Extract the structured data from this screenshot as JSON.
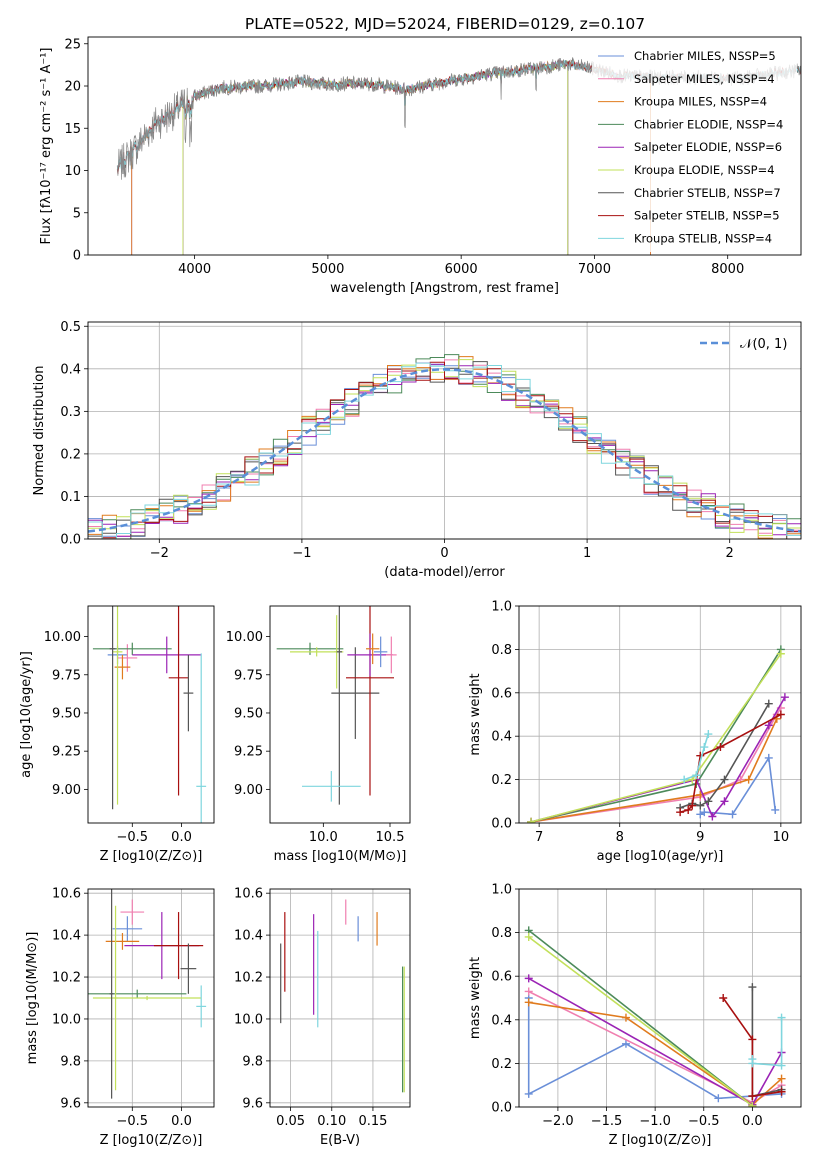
{
  "title": "PLATE=0522, MJD=52024, FIBERID=0129, z=0.107",
  "colors": {
    "Chabrier MILES": "#6a8fd8",
    "Salpeter MILES": "#f07fb0",
    "Kroupa MILES": "#e07b1e",
    "Chabrier ELODIE": "#4c8a5a",
    "Salpeter ELODIE": "#9b24b5",
    "Kroupa ELODIE": "#c2e05a",
    "Chabrier STELIB": "#555555",
    "Salpeter STELIB": "#a81010",
    "Kroupa STELIB": "#7fd6de",
    "data": "#888888",
    "normal": "#5a8fd8"
  },
  "chart_data": [
    {
      "id": "spectrum",
      "type": "line",
      "title": "PLATE=0522, MJD=52024, FIBERID=0129, z=0.107",
      "xlabel": "wavelength [Angstrom, rest frame]",
      "ylabel": "Flux [fλ10⁻¹⁷ erg cm⁻² s⁻¹ A⁻¹]",
      "xlim": [
        3200,
        8550
      ],
      "ylim": [
        0,
        25.8
      ],
      "xticks": [
        4000,
        5000,
        6000,
        7000,
        8000
      ],
      "yticks": [
        0,
        5,
        10,
        15,
        20,
        25
      ],
      "grid": false,
      "legend_position": "top-right",
      "legend": [
        "Chabrier MILES, NSSP=5",
        "Salpeter MILES, NSSP=4",
        "Kroupa MILES, NSSP=4",
        "Chabrier ELODIE, NSSP=4",
        "Salpeter ELODIE, NSSP=6",
        "Kroupa ELODIE, NSSP=4",
        "Chabrier STELIB, NSSP=7",
        "Salpeter STELIB, NSSP=5",
        "Kroupa STELIB, NSSP=4"
      ],
      "data_range": [
        3420,
        8550
      ],
      "continuum": [
        [
          3420,
          10.2
        ],
        [
          3550,
          12.5
        ],
        [
          3700,
          15.5
        ],
        [
          3850,
          17
        ],
        [
          4000,
          18.8
        ],
        [
          4200,
          19.8
        ],
        [
          4500,
          20
        ],
        [
          4800,
          20.5
        ],
        [
          5000,
          20.2
        ],
        [
          5300,
          20.3
        ],
        [
          5600,
          19.6
        ],
        [
          5900,
          20.6
        ],
        [
          6200,
          21.4
        ],
        [
          6500,
          22
        ],
        [
          6800,
          22.6
        ],
        [
          7000,
          22
        ],
        [
          7200,
          21.2
        ],
        [
          7500,
          21
        ],
        [
          7800,
          21
        ],
        [
          8100,
          20.9
        ],
        [
          8550,
          21.9
        ]
      ],
      "model_cutoffs": {
        "MILES": [
          3525,
          7420
        ],
        "ELODIE": [
          3910,
          6800
        ],
        "STELIB": [
          3420,
          8550
        ]
      }
    },
    {
      "id": "residuals",
      "type": "histogram",
      "xlabel": "(data-model)/error",
      "ylabel": "Normed distribution",
      "xlim": [
        -2.5,
        2.5
      ],
      "ylim": [
        0,
        0.51
      ],
      "xticks": [
        -2,
        -1,
        0,
        1,
        2
      ],
      "yticks": [
        0.0,
        0.1,
        0.2,
        0.3,
        0.4,
        0.5
      ],
      "grid": true,
      "legend_position": "top-right",
      "legend": [
        "𝒩(0, 1)"
      ],
      "bin_width": 0.1
    },
    {
      "id": "age-vs-Z",
      "type": "errorbar",
      "xlabel": "Z [log10(Z/Z⊙)]",
      "ylabel": "age  [log10(age/yr)]",
      "xlim": [
        -0.95,
        0.33
      ],
      "ylim": [
        8.78,
        10.2
      ],
      "xticks": [
        -0.5,
        0.0
      ],
      "yticks": [
        9.0,
        9.25,
        9.5,
        9.75,
        10.0
      ],
      "points": [
        {
          "model": "Chabrier MILES",
          "x": -0.65,
          "xerr": 0.1,
          "y": 9.88,
          "yerr": 0.06
        },
        {
          "model": "Salpeter MILES",
          "x": -0.55,
          "xerr": 0.1,
          "y": 9.86,
          "yerr": 0.09
        },
        {
          "model": "Kroupa MILES",
          "x": -0.6,
          "xerr": 0.08,
          "y": 9.8,
          "yerr": 0.08
        },
        {
          "model": "Chabrier ELODIE",
          "x": -0.5,
          "xerr": 0.4,
          "y": 9.92,
          "yerr": 0.04
        },
        {
          "model": "Salpeter ELODIE",
          "x": -0.15,
          "xerr": 0.35,
          "y": 9.88,
          "yerr": 0.12
        },
        {
          "model": "Kroupa ELODIE",
          "x": -0.65,
          "xerr": 0.05,
          "y": 9.9,
          "yerr": 1.0
        },
        {
          "model": "Chabrier STELIB",
          "x": -0.7,
          "xerr": 0.03,
          "y": 9.92,
          "yerr": 1.05
        },
        {
          "model": "Salpeter STELIB",
          "x": -0.03,
          "xerr": 0.1,
          "y": 9.73,
          "yerr": 0.77
        },
        {
          "model": "Chabrier STELIB",
          "x": 0.07,
          "xerr": 0.05,
          "y": 9.63,
          "yerr": 0.25
        },
        {
          "model": "Kroupa STELIB",
          "x": 0.2,
          "xerr": 0.05,
          "y": 9.02,
          "yerr": 0.87
        }
      ]
    },
    {
      "id": "age-vs-mass",
      "type": "errorbar",
      "xlabel": "mass [log10(M/M⊙)]",
      "ylabel": "",
      "xlim": [
        9.6,
        10.65
      ],
      "ylim": [
        8.78,
        10.2
      ],
      "xticks": [
        10.0,
        10.5
      ],
      "yticks": [
        9.0,
        9.25,
        9.5,
        9.75,
        10.0
      ],
      "points": [
        {
          "model": "Chabrier ELODIE",
          "x": 9.9,
          "xerr": 0.25,
          "y": 9.92,
          "yerr": 0.04
        },
        {
          "model": "Kroupa ELODIE",
          "x": 9.95,
          "xerr": 0.2,
          "y": 9.9,
          "yerr": 0.03
        },
        {
          "model": "Kroupa ELODIE",
          "x": 10.1,
          "xerr": 0.02,
          "y": 9.9,
          "yerr": 0.24
        },
        {
          "model": "Chabrier STELIB",
          "x": 10.12,
          "xerr": 0.02,
          "y": 9.9,
          "yerr": 1.0
        },
        {
          "model": "Chabrier STELIB",
          "x": 10.24,
          "xerr": 0.18,
          "y": 9.63,
          "yerr": 0.3
        },
        {
          "model": "Kroupa STELIB",
          "x": 10.06,
          "xerr": 0.22,
          "y": 9.02,
          "yerr": 0.1
        },
        {
          "model": "Salpeter STELIB",
          "x": 10.35,
          "xerr": 0.18,
          "y": 9.73,
          "yerr": 0.77
        },
        {
          "model": "Salpeter ELODIE",
          "x": 10.35,
          "xerr": 0.17,
          "y": 9.88,
          "yerr": 0.14
        },
        {
          "model": "Kroupa MILES",
          "x": 10.37,
          "xerr": 0.05,
          "y": 9.92,
          "yerr": 0.1
        },
        {
          "model": "Chabrier MILES",
          "x": 10.43,
          "xerr": 0.05,
          "y": 9.9,
          "yerr": 0.1
        },
        {
          "model": "Salpeter MILES",
          "x": 10.51,
          "xerr": 0.04,
          "y": 9.88,
          "yerr": 0.12
        }
      ]
    },
    {
      "id": "weight-vs-age",
      "type": "line",
      "xlabel": "age  [log10(age/yr)]",
      "ylabel": "mass weight",
      "xlim": [
        6.75,
        10.25
      ],
      "ylim": [
        0,
        1.0
      ],
      "xticks": [
        7,
        8,
        9,
        10
      ],
      "yticks": [
        0.0,
        0.2,
        0.4,
        0.6,
        0.8,
        1.0
      ],
      "grid": true,
      "series": [
        {
          "model": "Chabrier MILES",
          "x": [
            9.0,
            9.05,
            9.4,
            9.85,
            9.93
          ],
          "y": [
            0.04,
            0.05,
            0.04,
            0.3,
            0.06
          ]
        },
        {
          "model": "Salpeter MILES",
          "x": [
            6.9,
            9.0,
            9.5,
            9.95,
            10.0
          ],
          "y": [
            0.005,
            0.12,
            0.2,
            0.5,
            0.53
          ]
        },
        {
          "model": "Kroupa MILES",
          "x": [
            6.9,
            9.0,
            9.6,
            9.95
          ],
          "y": [
            0.005,
            0.13,
            0.2,
            0.48
          ]
        },
        {
          "model": "Chabrier ELODIE",
          "x": [
            6.9,
            8.95,
            10.0
          ],
          "y": [
            0.005,
            0.18,
            0.8
          ]
        },
        {
          "model": "Salpeter ELODIE",
          "x": [
            6.9,
            8.95,
            9.15,
            9.3,
            9.85,
            10.05
          ],
          "y": [
            0.005,
            0.2,
            0.03,
            0.1,
            0.45,
            0.58
          ]
        },
        {
          "model": "Kroupa ELODIE",
          "x": [
            6.9,
            8.9,
            10.0
          ],
          "y": [
            0.005,
            0.2,
            0.78
          ]
        },
        {
          "model": "Chabrier STELIB",
          "x": [
            8.75,
            8.9,
            9.0,
            9.1,
            9.3,
            9.85
          ],
          "y": [
            0.07,
            0.09,
            0.08,
            0.1,
            0.2,
            0.55
          ]
        },
        {
          "model": "Salpeter STELIB",
          "x": [
            8.75,
            8.85,
            8.9,
            9.0,
            9.25,
            10.0
          ],
          "y": [
            0.05,
            0.06,
            0.08,
            0.31,
            0.35,
            0.5
          ]
        },
        {
          "model": "Kroupa STELIB",
          "x": [
            8.8,
            8.95,
            9.05,
            9.1
          ],
          "y": [
            0.2,
            0.22,
            0.35,
            0.41
          ]
        }
      ]
    },
    {
      "id": "mass-vs-Z",
      "type": "errorbar",
      "xlabel": "Z [log10(Z/Z⊙)]",
      "ylabel": "mass [log10(M/M⊙)]",
      "xlim": [
        -0.95,
        0.33
      ],
      "ylim": [
        9.58,
        10.62
      ],
      "xticks": [
        -0.5,
        0.0
      ],
      "yticks": [
        9.6,
        9.8,
        10.0,
        10.2,
        10.4,
        10.6
      ],
      "points": [
        {
          "model": "Chabrier MILES",
          "x": -0.55,
          "xerr": 0.15,
          "y": 10.43,
          "yerr": 0.06
        },
        {
          "model": "Salpeter MILES",
          "x": -0.5,
          "xerr": 0.12,
          "y": 10.51,
          "yerr": 0.06
        },
        {
          "model": "Kroupa MILES",
          "x": -0.6,
          "xerr": 0.17,
          "y": 10.37,
          "yerr": 0.04
        },
        {
          "model": "Chabrier ELODIE",
          "x": -0.45,
          "xerr": 0.5,
          "y": 10.12,
          "yerr": 0.02
        },
        {
          "model": "Kroupa ELODIE",
          "x": -0.35,
          "xerr": 0.55,
          "y": 10.1,
          "yerr": 0.01
        },
        {
          "model": "Kroupa ELODIE",
          "x": -0.67,
          "xerr": 0.02,
          "y": 10.1,
          "yerr": 0.44
        },
        {
          "model": "Chabrier STELIB",
          "x": -0.71,
          "xerr": 0.02,
          "y": 10.12,
          "yerr": 0.5
        },
        {
          "model": "Salpeter ELODIE",
          "x": -0.2,
          "xerr": 0.38,
          "y": 10.35,
          "yerr": 0.16
        },
        {
          "model": "Salpeter STELIB",
          "x": -0.03,
          "xerr": 0.25,
          "y": 10.35,
          "yerr": 0.16
        },
        {
          "model": "Chabrier STELIB",
          "x": 0.07,
          "xerr": 0.08,
          "y": 10.24,
          "yerr": 0.12
        },
        {
          "model": "Kroupa STELIB",
          "x": 0.2,
          "xerr": 0.05,
          "y": 10.06,
          "yerr": 0.1
        }
      ]
    },
    {
      "id": "mass-vs-EBV",
      "type": "errorbar",
      "xlabel": "E(B-V)",
      "ylabel": "",
      "xlim": [
        0.025,
        0.195
      ],
      "ylim": [
        9.58,
        10.62
      ],
      "xticks": [
        0.05,
        0.1,
        0.15
      ],
      "yticks": [
        9.6,
        9.8,
        10.0,
        10.2,
        10.4,
        10.6
      ],
      "points": [
        {
          "model": "Chabrier STELIB",
          "x": 0.038,
          "y": 10.17,
          "yerr": 0.19
        },
        {
          "model": "Salpeter STELIB",
          "x": 0.043,
          "y": 10.32,
          "yerr": 0.19
        },
        {
          "model": "Salpeter ELODIE",
          "x": 0.078,
          "y": 10.26,
          "yerr": 0.24
        },
        {
          "model": "Kroupa STELIB",
          "x": 0.083,
          "y": 10.19,
          "yerr": 0.23
        },
        {
          "model": "Salpeter MILES",
          "x": 0.117,
          "y": 10.51,
          "yerr": 0.06
        },
        {
          "model": "Chabrier MILES",
          "x": 0.132,
          "y": 10.43,
          "yerr": 0.06
        },
        {
          "model": "Kroupa MILES",
          "x": 0.155,
          "y": 10.43,
          "yerr": 0.08
        },
        {
          "model": "Chabrier ELODIE",
          "x": 0.186,
          "y": 9.95,
          "yerr": 0.3
        },
        {
          "model": "Kroupa ELODIE",
          "x": 0.188,
          "y": 9.95,
          "yerr": 0.3
        }
      ]
    },
    {
      "id": "weight-vs-Z",
      "type": "line",
      "xlabel": "Z [log10(Z/Z⊙)]",
      "ylabel": "mass weight",
      "xlim": [
        -2.4,
        0.5
      ],
      "ylim": [
        0,
        1.0
      ],
      "xticks": [
        -2.0,
        -1.5,
        -1.0,
        -0.5,
        0.0
      ],
      "yticks": [
        0.0,
        0.2,
        0.4,
        0.6,
        0.8,
        1.0
      ],
      "grid": true,
      "series": [
        {
          "model": "Chabrier MILES",
          "x": [
            -2.3,
            -2.3,
            -1.3,
            -0.35,
            0.0,
            0.3
          ],
          "y": [
            0.5,
            0.06,
            0.29,
            0.04,
            0.05,
            0.06
          ]
        },
        {
          "model": "Salpeter MILES",
          "x": [
            -2.3,
            0.0,
            0.3
          ],
          "y": [
            0.53,
            0.02,
            0.1
          ]
        },
        {
          "model": "Kroupa MILES",
          "x": [
            -2.3,
            -1.3,
            0.0,
            0.3
          ],
          "y": [
            0.48,
            0.41,
            0.01,
            0.13
          ]
        },
        {
          "model": "Chabrier ELODIE",
          "x": [
            -2.3,
            0.0
          ],
          "y": [
            0.81,
            0.005
          ]
        },
        {
          "model": "Salpeter ELODIE",
          "x": [
            -2.3,
            0.0,
            0.3
          ],
          "y": [
            0.59,
            0.01,
            0.25
          ]
        },
        {
          "model": "Kroupa ELODIE",
          "x": [
            -2.3,
            0.0
          ],
          "y": [
            0.78,
            0.005
          ]
        },
        {
          "model": "Chabrier STELIB",
          "x": [
            0.0,
            0.0,
            0.3
          ],
          "y": [
            0.55,
            0.05,
            0.08
          ]
        },
        {
          "model": "Salpeter STELIB",
          "x": [
            -0.3,
            0.0,
            0.0,
            0.3
          ],
          "y": [
            0.5,
            0.31,
            0.05,
            0.07
          ]
        },
        {
          "model": "Kroupa STELIB",
          "x": [
            0.0,
            0.0,
            0.3,
            0.3
          ],
          "y": [
            0.22,
            0.2,
            0.19,
            0.41
          ]
        }
      ]
    }
  ]
}
